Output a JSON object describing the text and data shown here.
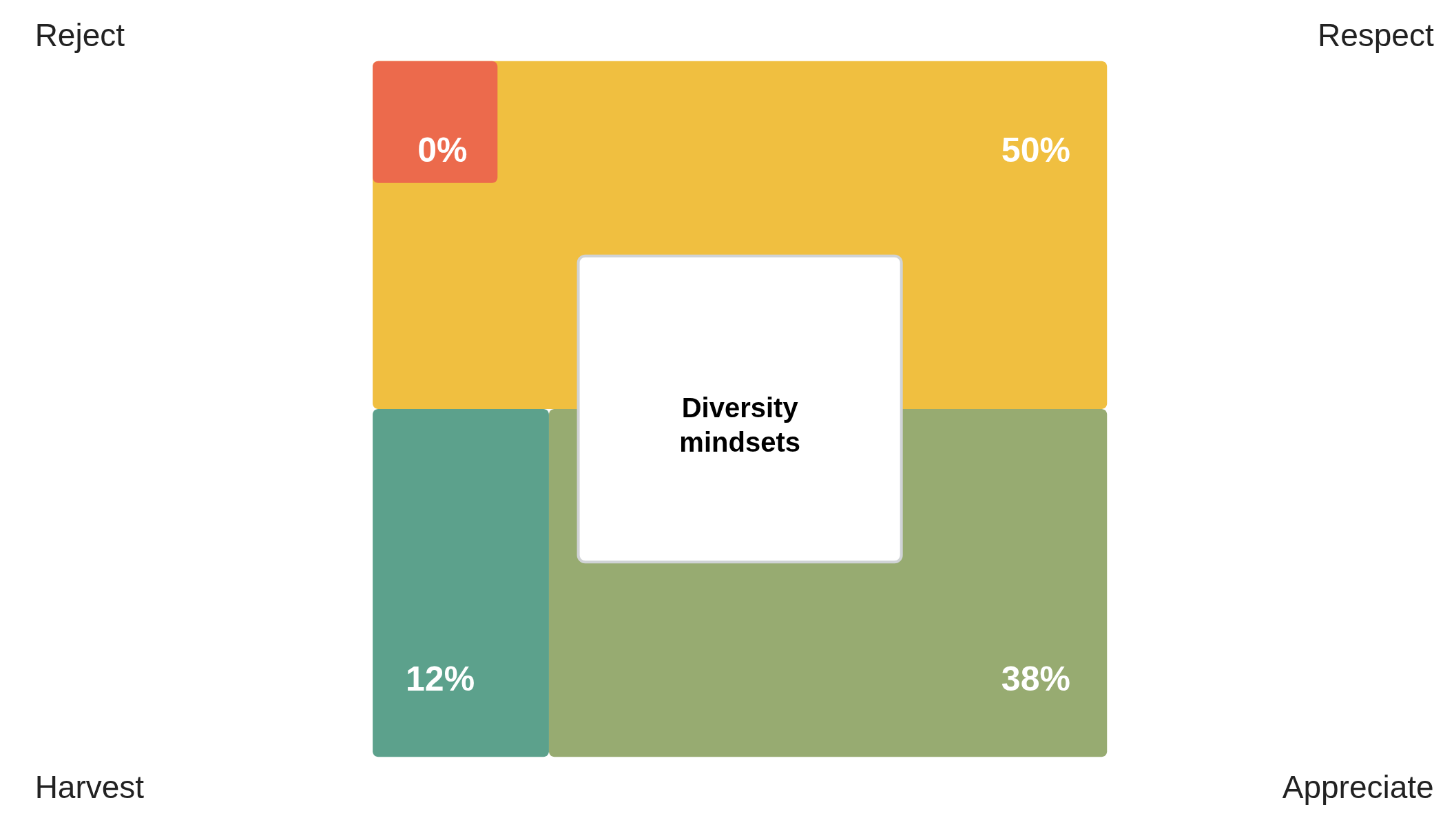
{
  "chart_data": {
    "type": "other",
    "title": "Diversity mindsets",
    "categories": [
      "Reject",
      "Respect",
      "Harvest",
      "Appreciate"
    ],
    "values": [
      0,
      50,
      12,
      38
    ],
    "value_labels": [
      "0%",
      "50%",
      "12%",
      "38%"
    ],
    "colors": [
      "#ec6a4c",
      "#f0bf40",
      "#5ca18c",
      "#97ab71"
    ]
  }
}
